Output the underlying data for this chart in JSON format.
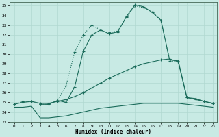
{
  "xlabel": "Humidex (Indice chaleur)",
  "bg_color": "#c8eae4",
  "line_color": "#1a6b5a",
  "grid_color": "#b0d8d0",
  "xlim": [
    -0.5,
    23.5
  ],
  "ylim": [
    23,
    35.4
  ],
  "xticks": [
    0,
    1,
    2,
    3,
    4,
    5,
    6,
    7,
    8,
    9,
    10,
    11,
    12,
    13,
    14,
    15,
    16,
    17,
    18,
    19,
    20,
    21,
    22,
    23
  ],
  "yticks": [
    23,
    24,
    25,
    26,
    27,
    28,
    29,
    30,
    31,
    32,
    33,
    34,
    35
  ],
  "line_dotted_x": [
    0,
    1,
    2,
    3,
    4,
    5,
    6,
    7,
    8,
    9,
    10,
    11,
    12,
    13,
    14,
    15,
    16,
    17,
    18,
    19
  ],
  "line_dotted_y": [
    24.8,
    25.1,
    25.1,
    24.8,
    24.8,
    25.2,
    26.7,
    30.2,
    32.0,
    33.0,
    32.5,
    32.2,
    32.4,
    33.8,
    35.0,
    34.8,
    34.4,
    33.5,
    29.3,
    29.2
  ],
  "line_solid_x": [
    3,
    4,
    5,
    6,
    7,
    8,
    9,
    10,
    11,
    12,
    13,
    14,
    15,
    16,
    17,
    18,
    19,
    20,
    21,
    22,
    23
  ],
  "line_solid_y": [
    24.8,
    24.8,
    25.2,
    25.0,
    26.6,
    30.3,
    32.0,
    32.5,
    32.1,
    32.3,
    33.9,
    35.1,
    34.9,
    34.3,
    33.5,
    29.4,
    29.3,
    25.5,
    25.3,
    25.1,
    24.9
  ],
  "line_rising_x": [
    0,
    1,
    2,
    3,
    4,
    5,
    6,
    7,
    8,
    9,
    10,
    11,
    12,
    13,
    14,
    15,
    16,
    17,
    18,
    19,
    20,
    21,
    22,
    23
  ],
  "line_rising_y": [
    24.8,
    25.0,
    25.1,
    24.9,
    24.9,
    25.1,
    25.3,
    25.6,
    26.0,
    26.5,
    27.0,
    27.5,
    27.9,
    28.3,
    28.7,
    29.0,
    29.2,
    29.4,
    29.5,
    29.2,
    25.5,
    25.4,
    25.1,
    24.9
  ],
  "line_bottom_x": [
    0,
    1,
    2,
    3,
    4,
    5,
    6,
    7,
    8,
    9,
    10,
    11,
    12,
    13,
    14,
    15,
    16,
    17,
    18,
    19,
    20,
    21,
    22,
    23
  ],
  "line_bottom_y": [
    24.5,
    24.5,
    24.6,
    23.4,
    23.4,
    23.5,
    23.6,
    23.8,
    24.0,
    24.2,
    24.4,
    24.5,
    24.6,
    24.7,
    24.8,
    24.9,
    24.9,
    24.9,
    24.9,
    24.9,
    24.8,
    24.7,
    24.6,
    24.5
  ]
}
